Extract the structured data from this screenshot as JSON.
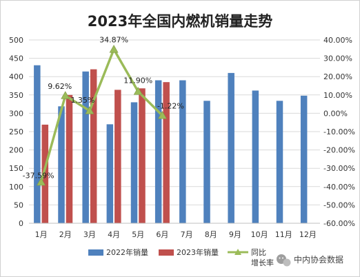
{
  "chart_data": {
    "type": "bar",
    "title": "2023年全国内燃机销量走势",
    "categories": [
      "1月",
      "2月",
      "3月",
      "4月",
      "5月",
      "6月",
      "7月",
      "8月",
      "9月",
      "10月",
      "11月",
      "12月"
    ],
    "series": [
      {
        "name": "2022年销量",
        "type": "bar",
        "color": "#4F81BD",
        "values": [
          431,
          319,
          414,
          270,
          330,
          390,
          390,
          334,
          410,
          362,
          334,
          348
        ]
      },
      {
        "name": "2023年销量",
        "type": "bar",
        "color": "#C0504D",
        "values": [
          269,
          350,
          420,
          364,
          368,
          385,
          null,
          null,
          null,
          null,
          null,
          null
        ]
      },
      {
        "name": "同比增长率",
        "legend_lines": [
          "同比",
          "增长率"
        ],
        "type": "line",
        "axis": "right",
        "color": "#9BBB59",
        "values": [
          -37.59,
          9.62,
          1.35,
          34.87,
          11.9,
          -1.22,
          null,
          null,
          null,
          null,
          null,
          null
        ],
        "labels": [
          "-37.59%",
          "9.62%",
          "1.35%",
          "34.87%",
          "11.90%",
          "-1.22%"
        ]
      }
    ],
    "ylim": [
      0,
      500
    ],
    "y_ticks": [
      "0",
      "50",
      "100",
      "150",
      "200",
      "250",
      "300",
      "350",
      "400",
      "450",
      "500"
    ],
    "y2lim": [
      -60,
      40
    ],
    "y2_ticks": [
      "-60.00%",
      "-50.00%",
      "-40.00%",
      "-30.00%",
      "-20.00%",
      "-10.00%",
      "0.00%",
      "10.00%",
      "20.00%",
      "30.00%",
      "40.00%"
    ],
    "grid": true,
    "legend_position": "bottom"
  },
  "watermark": {
    "text": "中内协会数据",
    "icon": "wechat-icon"
  }
}
